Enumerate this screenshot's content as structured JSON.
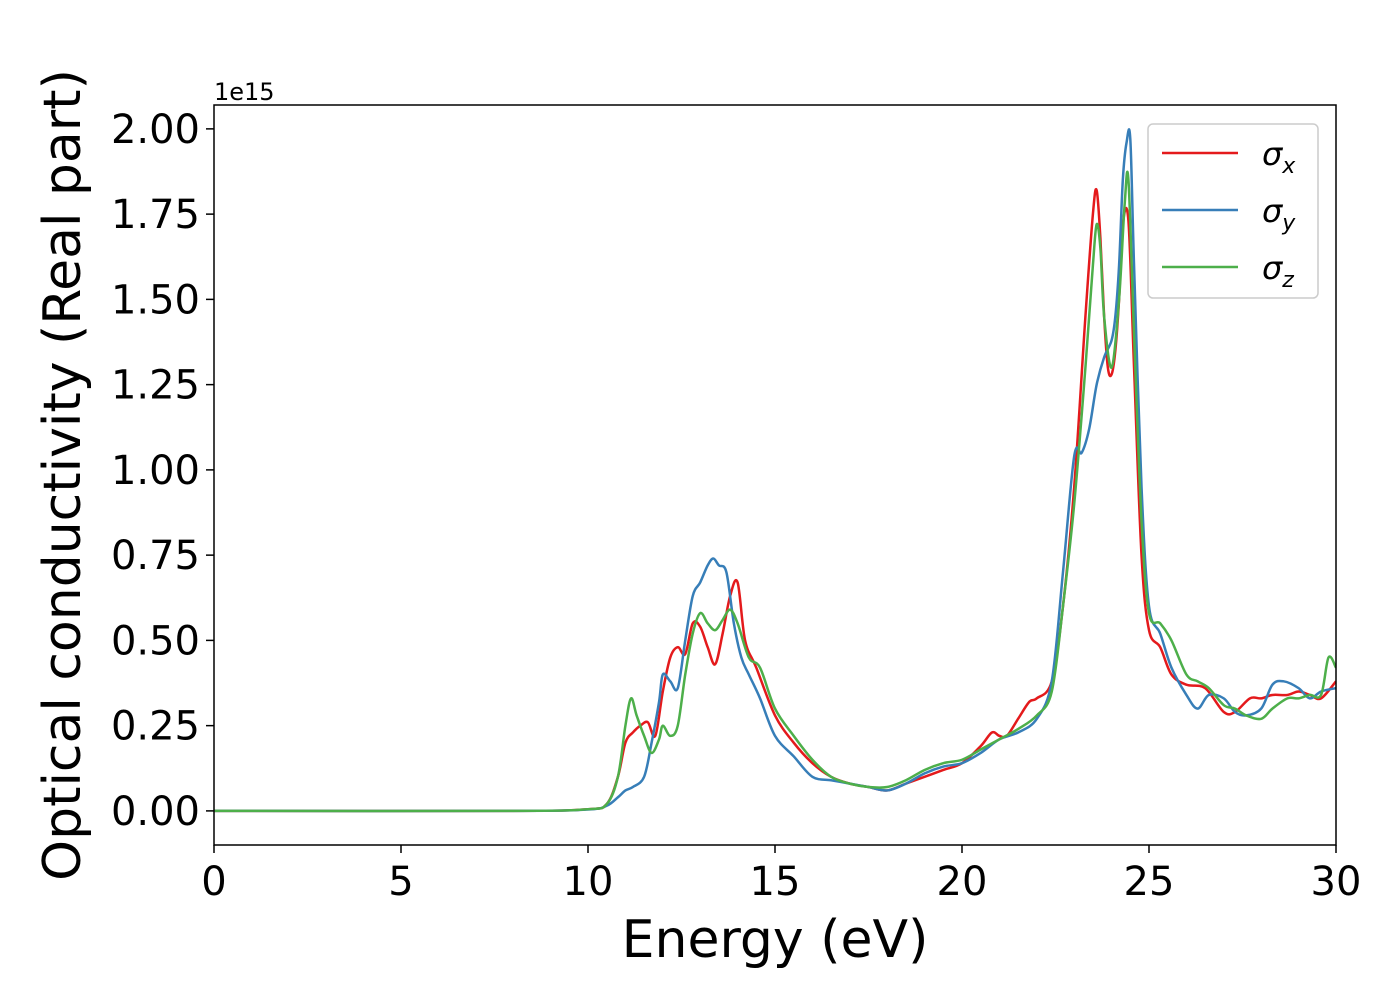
{
  "chart_data": {
    "type": "line",
    "title": "",
    "xlabel": "Energy (eV)",
    "ylabel": "Optical conductivity (Real part)",
    "y_offset_label": "1e15",
    "xlim": [
      0,
      30
    ],
    "ylim": [
      -0.1,
      2.07
    ],
    "xticks": [
      0,
      5,
      10,
      15,
      20,
      25,
      30
    ],
    "xtick_labels": [
      "0",
      "5",
      "10",
      "15",
      "20",
      "25",
      "30"
    ],
    "yticks": [
      0.0,
      0.25,
      0.5,
      0.75,
      1.0,
      1.25,
      1.5,
      1.75,
      2.0
    ],
    "ytick_labels": [
      "0.00",
      "0.25",
      "0.50",
      "0.75",
      "1.00",
      "1.25",
      "1.50",
      "1.75",
      "2.00"
    ],
    "grid": false,
    "legend_position": "top-right",
    "series": [
      {
        "name": "σx",
        "legend_symbol": "σ",
        "legend_subscript": "x",
        "color": "#e41a1c",
        "x": [
          0,
          8,
          10,
          10.5,
          10.8,
          11.0,
          11.2,
          11.4,
          11.6,
          11.8,
          12.0,
          12.2,
          12.4,
          12.6,
          12.8,
          13.0,
          13.2,
          13.4,
          13.6,
          13.8,
          14.0,
          14.2,
          14.5,
          15.0,
          15.5,
          16.0,
          16.5,
          17.0,
          17.5,
          18.0,
          18.5,
          19.0,
          19.5,
          20.0,
          20.5,
          20.8,
          21.0,
          21.2,
          21.5,
          21.8,
          22.0,
          22.4,
          22.7,
          23.0,
          23.3,
          23.5,
          23.6,
          23.7,
          23.8,
          23.9,
          24.0,
          24.1,
          24.2,
          24.3,
          24.45,
          24.6,
          24.8,
          25.0,
          25.3,
          25.6,
          26.0,
          26.5,
          27.0,
          27.3,
          27.7,
          28.0,
          28.3,
          28.7,
          29.0,
          29.3,
          29.6,
          30.0
        ],
        "values": [
          0,
          0.0,
          0.005,
          0.02,
          0.1,
          0.2,
          0.23,
          0.25,
          0.26,
          0.22,
          0.35,
          0.45,
          0.48,
          0.46,
          0.55,
          0.54,
          0.48,
          0.43,
          0.52,
          0.63,
          0.67,
          0.5,
          0.42,
          0.28,
          0.2,
          0.14,
          0.1,
          0.08,
          0.07,
          0.06,
          0.08,
          0.1,
          0.12,
          0.14,
          0.19,
          0.23,
          0.22,
          0.22,
          0.27,
          0.32,
          0.33,
          0.38,
          0.6,
          0.95,
          1.45,
          1.75,
          1.82,
          1.68,
          1.45,
          1.3,
          1.28,
          1.35,
          1.5,
          1.72,
          1.73,
          1.3,
          0.75,
          0.53,
          0.48,
          0.4,
          0.37,
          0.36,
          0.29,
          0.29,
          0.33,
          0.33,
          0.34,
          0.34,
          0.35,
          0.34,
          0.33,
          0.38
        ]
      },
      {
        "name": "σy",
        "legend_symbol": "σ",
        "legend_subscript": "y",
        "color": "#377eb8",
        "x": [
          0,
          8,
          10,
          10.5,
          10.8,
          11.0,
          11.2,
          11.5,
          11.7,
          11.9,
          12.0,
          12.2,
          12.4,
          12.6,
          12.8,
          13.0,
          13.2,
          13.35,
          13.5,
          13.7,
          13.9,
          14.1,
          14.3,
          14.6,
          15.0,
          15.5,
          16.0,
          16.5,
          17.0,
          17.5,
          18.0,
          18.5,
          19.0,
          19.5,
          20.0,
          20.5,
          21.0,
          21.5,
          22.0,
          22.4,
          22.7,
          23.0,
          23.2,
          23.4,
          23.6,
          23.8,
          24.0,
          24.1,
          24.2,
          24.3,
          24.4,
          24.5,
          24.6,
          24.8,
          25.0,
          25.3,
          25.6,
          26.0,
          26.3,
          26.6,
          27.0,
          27.3,
          27.6,
          28.0,
          28.3,
          28.6,
          29.0,
          29.3,
          29.6,
          30.0
        ],
        "values": [
          0,
          0.0,
          0.004,
          0.015,
          0.04,
          0.06,
          0.07,
          0.1,
          0.2,
          0.32,
          0.4,
          0.38,
          0.36,
          0.5,
          0.63,
          0.67,
          0.72,
          0.74,
          0.72,
          0.7,
          0.55,
          0.45,
          0.4,
          0.33,
          0.22,
          0.16,
          0.1,
          0.09,
          0.08,
          0.07,
          0.06,
          0.08,
          0.11,
          0.13,
          0.14,
          0.17,
          0.21,
          0.23,
          0.27,
          0.38,
          0.7,
          1.04,
          1.05,
          1.12,
          1.25,
          1.33,
          1.38,
          1.45,
          1.6,
          1.85,
          1.96,
          1.97,
          1.6,
          0.95,
          0.6,
          0.52,
          0.42,
          0.34,
          0.3,
          0.34,
          0.33,
          0.29,
          0.28,
          0.3,
          0.37,
          0.38,
          0.36,
          0.33,
          0.35,
          0.36
        ]
      },
      {
        "name": "σz",
        "legend_symbol": "σ",
        "legend_subscript": "z",
        "color": "#4daf4a",
        "x": [
          0,
          8,
          10,
          10.5,
          10.8,
          11.0,
          11.15,
          11.3,
          11.5,
          11.7,
          11.9,
          12.0,
          12.2,
          12.4,
          12.6,
          12.8,
          13.0,
          13.2,
          13.4,
          13.6,
          13.8,
          14.0,
          14.3,
          14.6,
          15.0,
          15.5,
          16.0,
          16.5,
          17.0,
          17.5,
          18.0,
          18.5,
          19.0,
          19.5,
          20.0,
          20.5,
          21.0,
          21.5,
          22.0,
          22.4,
          22.7,
          23.0,
          23.3,
          23.5,
          23.6,
          23.7,
          23.8,
          24.0,
          24.2,
          24.35,
          24.45,
          24.6,
          24.8,
          25.0,
          25.3,
          25.6,
          26.0,
          26.3,
          26.6,
          27.0,
          27.3,
          27.6,
          28.0,
          28.3,
          28.7,
          29.0,
          29.3,
          29.6,
          29.8,
          30.0
        ],
        "values": [
          0,
          0.0,
          0.005,
          0.02,
          0.1,
          0.25,
          0.33,
          0.28,
          0.22,
          0.17,
          0.21,
          0.25,
          0.22,
          0.25,
          0.4,
          0.52,
          0.58,
          0.55,
          0.53,
          0.56,
          0.59,
          0.55,
          0.45,
          0.42,
          0.3,
          0.22,
          0.15,
          0.1,
          0.08,
          0.07,
          0.07,
          0.09,
          0.12,
          0.14,
          0.15,
          0.18,
          0.21,
          0.24,
          0.28,
          0.35,
          0.6,
          0.9,
          1.3,
          1.6,
          1.72,
          1.65,
          1.45,
          1.3,
          1.5,
          1.78,
          1.85,
          1.4,
          0.85,
          0.58,
          0.55,
          0.5,
          0.4,
          0.38,
          0.36,
          0.31,
          0.3,
          0.28,
          0.27,
          0.3,
          0.33,
          0.33,
          0.34,
          0.34,
          0.45,
          0.42
        ]
      }
    ]
  }
}
